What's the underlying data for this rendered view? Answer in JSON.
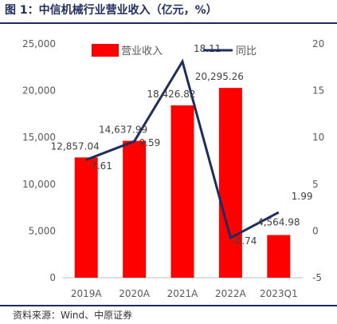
{
  "figure_title": "图 1：中信机械行业营业收入（亿元，%）",
  "source": "资料来源：Wind、中原证券",
  "chart_data": {
    "type": "bar",
    "categories": [
      "2019A",
      "2020A",
      "2021A",
      "2022A",
      "2023Q1"
    ],
    "series": [
      {
        "name": "营业收入",
        "type": "bar",
        "axis": "left",
        "color": "#ff0000",
        "values": [
          12857.04,
          14637.99,
          18426.82,
          20295.26,
          4564.98
        ],
        "labels": [
          "12,857.04",
          "14,637.99",
          "18,426.82",
          "20,295.26",
          "4,564.98"
        ]
      },
      {
        "name": "同比",
        "type": "line",
        "axis": "right",
        "color": "#1f2d5c",
        "values": [
          7.61,
          9.59,
          18.11,
          -0.74,
          1.99
        ],
        "labels": [
          "7.61",
          "9.59",
          "18.11",
          "-0.74",
          "1.99"
        ]
      }
    ],
    "y_left": {
      "lim": [
        0,
        25000
      ],
      "ticks": [
        0,
        5000,
        10000,
        15000,
        20000,
        25000
      ],
      "tick_labels": [
        "0",
        "5,000",
        "10,000",
        "15,000",
        "20,000",
        "25,000"
      ]
    },
    "y_right": {
      "lim": [
        -5,
        20
      ],
      "ticks": [
        -5,
        0,
        5,
        10,
        15,
        20
      ],
      "tick_labels": [
        "-5",
        "0",
        "5",
        "10",
        "15",
        "20"
      ]
    },
    "legend_position": "top",
    "grid": false
  }
}
